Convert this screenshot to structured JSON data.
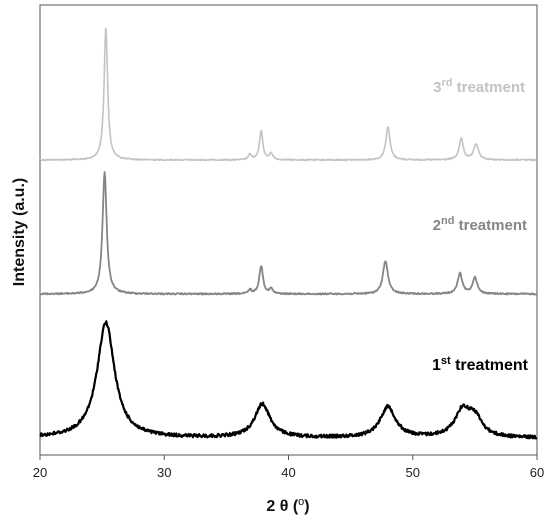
{
  "chart_data": {
    "type": "line",
    "xlabel_main": "2 θ (",
    "xlabel_sup": "o",
    "xlabel_end": ")",
    "ylabel": "Intensity (a.u.)",
    "xlim": [
      20,
      60
    ],
    "xticks": [
      20,
      30,
      40,
      50,
      60
    ],
    "yticks_shown": false,
    "grid": false,
    "series": [
      {
        "label_num": "3",
        "label_sup": "rd",
        "label_text": " treatment",
        "color": "#c3c3c3",
        "baseline": 0,
        "peaks": [
          [
            25.3,
            1.0,
            0.17
          ],
          [
            36.9,
            0.04,
            0.15
          ],
          [
            37.8,
            0.22,
            0.16
          ],
          [
            38.6,
            0.05,
            0.16
          ],
          [
            48.0,
            0.25,
            0.2
          ],
          [
            53.9,
            0.16,
            0.2
          ],
          [
            55.1,
            0.12,
            0.22
          ]
        ]
      },
      {
        "label_num": "2",
        "label_sup": "nd",
        "label_text": " treatment",
        "color": "#858585",
        "baseline": 0,
        "peaks": [
          [
            25.2,
            0.95,
            0.2
          ],
          [
            36.9,
            0.03,
            0.15
          ],
          [
            37.8,
            0.22,
            0.18
          ],
          [
            38.6,
            0.04,
            0.15
          ],
          [
            47.8,
            0.26,
            0.24
          ],
          [
            53.8,
            0.16,
            0.22
          ],
          [
            55.0,
            0.13,
            0.22
          ]
        ]
      },
      {
        "label_num": "1",
        "label_sup": "st",
        "label_text": " treatment",
        "color": "#000000",
        "baseline": 0,
        "peaks": [
          [
            25.3,
            0.9,
            0.85
          ],
          [
            37.9,
            0.26,
            0.75
          ],
          [
            48.0,
            0.24,
            0.75
          ],
          [
            54.0,
            0.2,
            0.75
          ],
          [
            55.0,
            0.14,
            0.7
          ]
        ]
      }
    ]
  }
}
